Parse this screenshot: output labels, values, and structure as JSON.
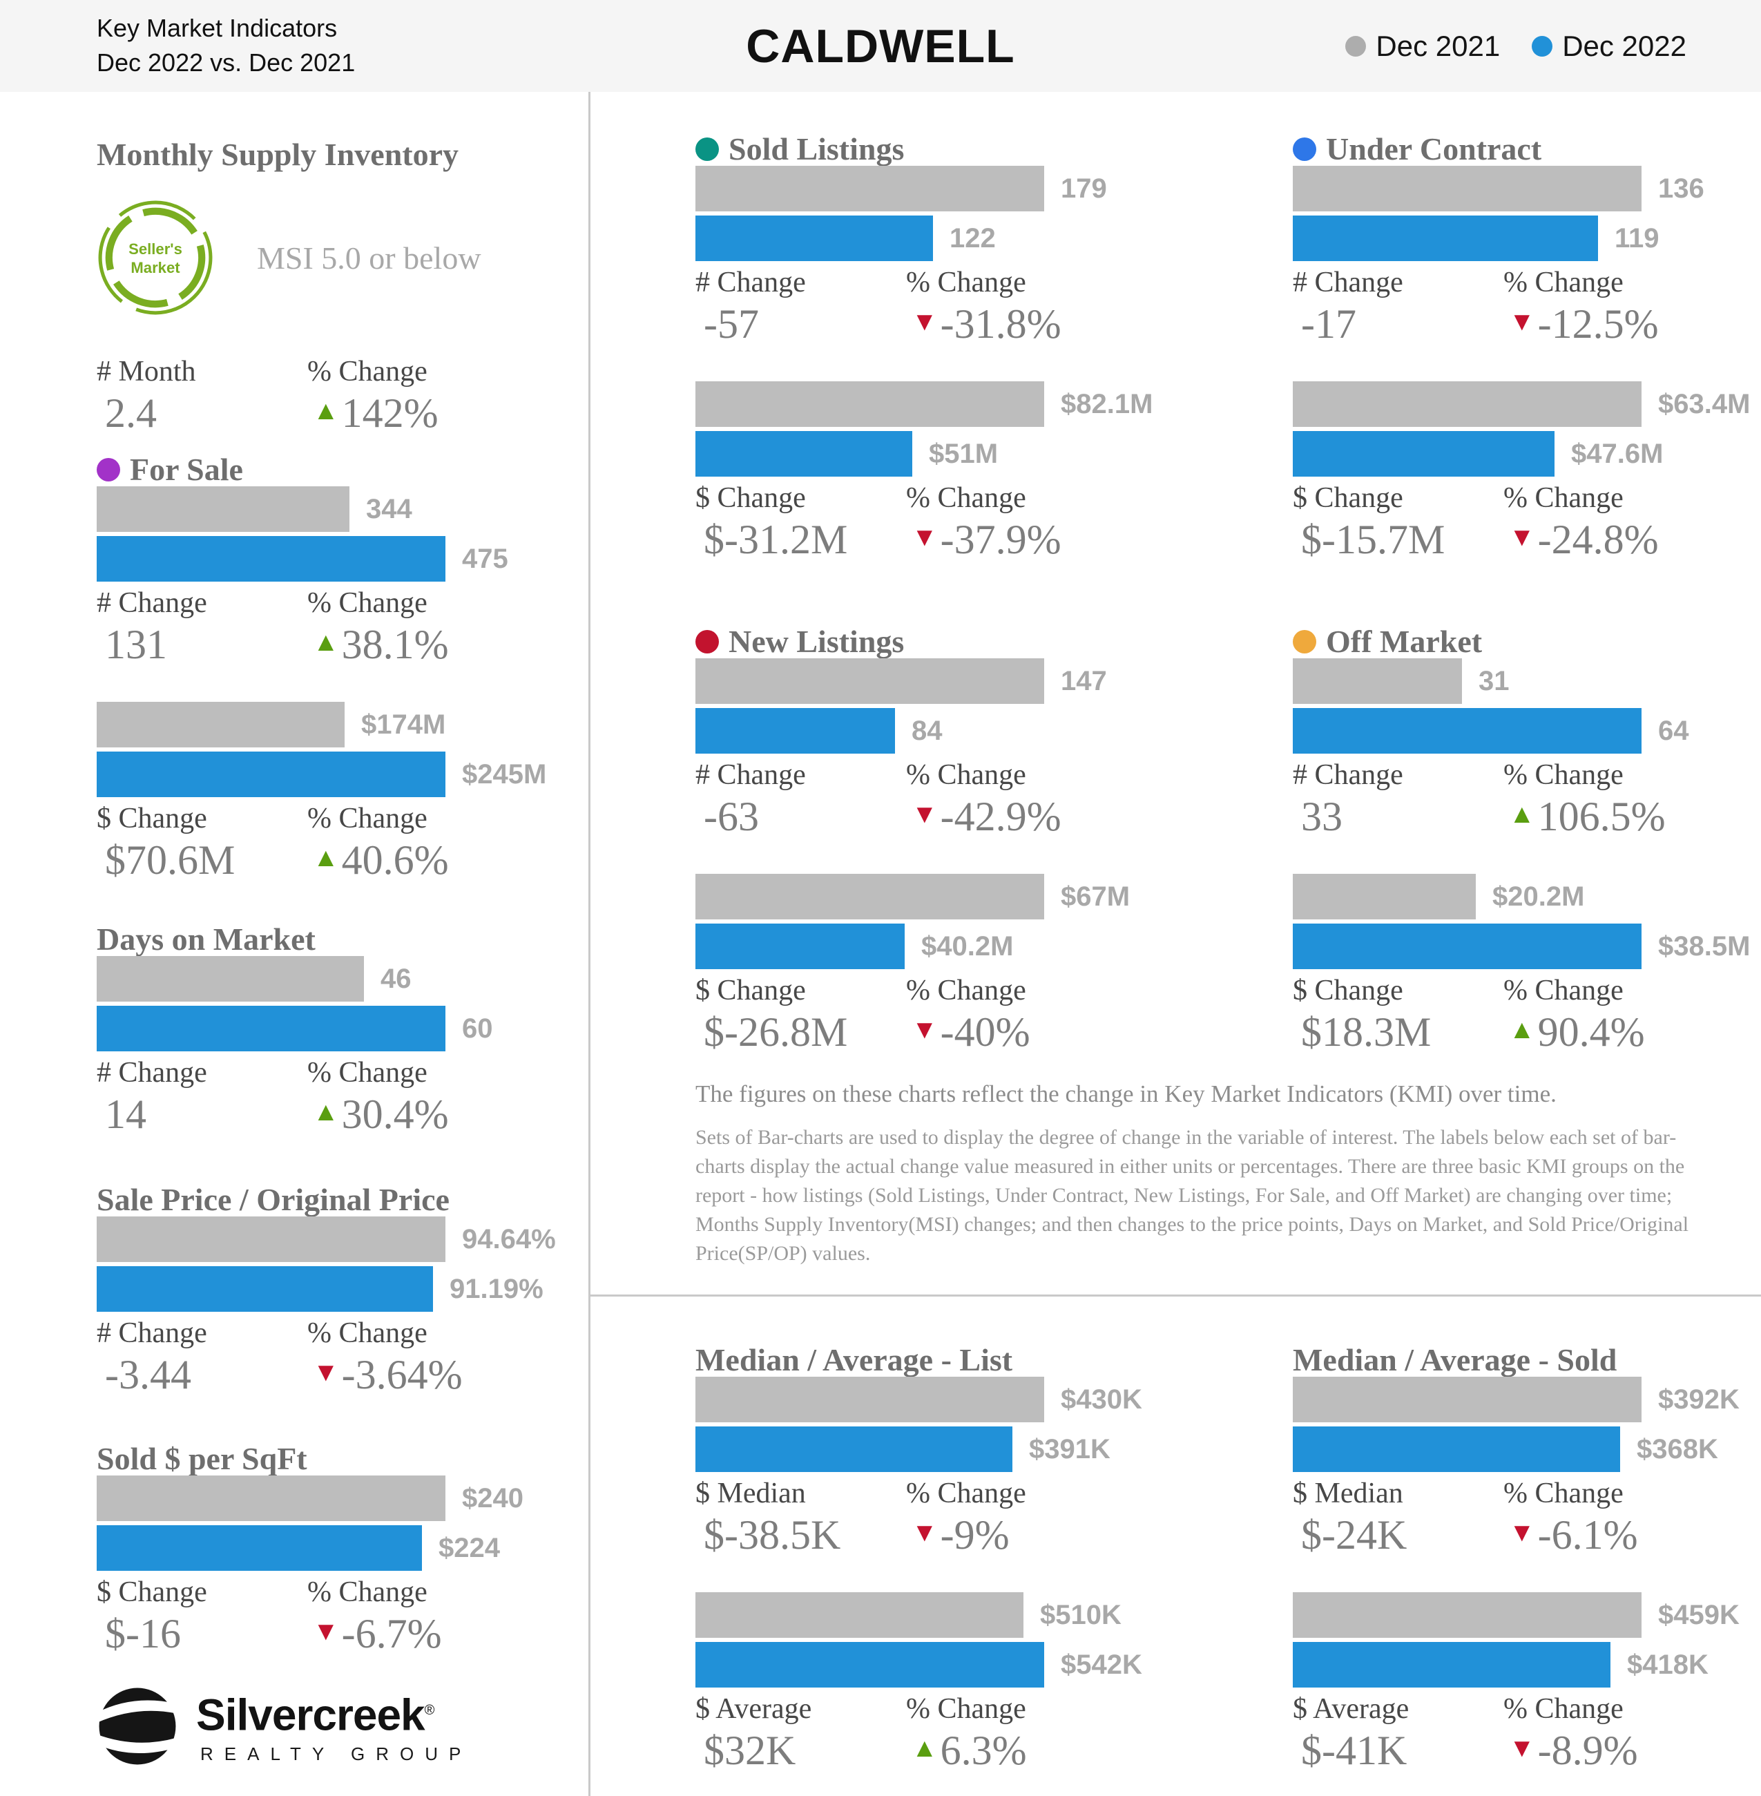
{
  "header": {
    "report_title_line1": "Key Market Indicators",
    "report_title_line2": "Dec 2022 vs. Dec 2021",
    "market_name": "CALDWELL",
    "legend": [
      {
        "label": "Dec 2021",
        "color": "#ADADAD"
      },
      {
        "label": "Dec 2022",
        "color": "#2191D8"
      }
    ]
  },
  "colors": {
    "header_bg": "#F5F5F5",
    "divider": "#C9C9C9",
    "bar_prev": "#BDBDBD",
    "bar_curr": "#2191D8",
    "triangle_up": "#5A9E10",
    "triangle_down": "#C4122F",
    "dot_for_sale": "#A232C8",
    "dot_sold_listings": "#0A9384",
    "dot_under_contract": "#2E77E8",
    "dot_new_listings": "#C2132E",
    "dot_off_market": "#EFA93C",
    "badge_green": "#7AAD21"
  },
  "msi": {
    "title": "Monthly Supply Inventory",
    "badge_line1": "Seller's",
    "badge_line2": "Market",
    "badge_note": "MSI 5.0 or below",
    "stats": [
      {
        "label": "# Month",
        "value": "2.4",
        "dir": "none"
      },
      {
        "label": "% Change",
        "value": "142%",
        "dir": "up"
      }
    ]
  },
  "indicators": {
    "for_sale": {
      "title": "For Sale",
      "chart1": {
        "prev": 344,
        "curr": 475,
        "prev_label": "344",
        "curr_label": "475",
        "stats": [
          {
            "label": "# Change",
            "value": "131",
            "dir": "none"
          },
          {
            "label": "% Change",
            "value": "38.1%",
            "dir": "up"
          }
        ]
      },
      "chart2": {
        "prev": 174,
        "curr": 245,
        "prev_label": "$174M",
        "curr_label": "$245M",
        "stats": [
          {
            "label": "$ Change",
            "value": "$70.6M",
            "dir": "none"
          },
          {
            "label": "% Change",
            "value": "40.6%",
            "dir": "up"
          }
        ]
      }
    },
    "days_on_market": {
      "title": "Days on Market",
      "chart1": {
        "prev": 46,
        "curr": 60,
        "prev_label": "46",
        "curr_label": "60",
        "stats": [
          {
            "label": "# Change",
            "value": "14",
            "dir": "none"
          },
          {
            "label": "% Change",
            "value": "30.4%",
            "dir": "up"
          }
        ]
      }
    },
    "sale_price_original": {
      "title": "Sale Price / Original Price",
      "chart1": {
        "prev": 94.64,
        "curr": 91.19,
        "prev_label": "94.64%",
        "curr_label": "91.19%",
        "stats": [
          {
            "label": "# Change",
            "value": "-3.44",
            "dir": "none"
          },
          {
            "label": "% Change",
            "value": "-3.64%",
            "dir": "down"
          }
        ]
      }
    },
    "sold_per_sqft": {
      "title": "Sold $ per SqFt",
      "chart1": {
        "prev": 240,
        "curr": 224,
        "prev_label": "$240",
        "curr_label": "$224",
        "stats": [
          {
            "label": "$ Change",
            "value": "$-16",
            "dir": "none"
          },
          {
            "label": "% Change",
            "value": "-6.7%",
            "dir": "down"
          }
        ]
      }
    },
    "sold_listings": {
      "title": "Sold Listings",
      "chart1": {
        "prev": 179,
        "curr": 122,
        "prev_label": "179",
        "curr_label": "122",
        "stats": [
          {
            "label": "# Change",
            "value": "-57",
            "dir": "none"
          },
          {
            "label": "% Change",
            "value": "-31.8%",
            "dir": "down"
          }
        ]
      },
      "chart2": {
        "prev": 82.1,
        "curr": 51,
        "prev_label": "$82.1M",
        "curr_label": "$51M",
        "stats": [
          {
            "label": "$ Change",
            "value": "$-31.2M",
            "dir": "none"
          },
          {
            "label": "% Change",
            "value": "-37.9%",
            "dir": "down"
          }
        ]
      }
    },
    "under_contract": {
      "title": "Under Contract",
      "chart1": {
        "prev": 136,
        "curr": 119,
        "prev_label": "136",
        "curr_label": "119",
        "stats": [
          {
            "label": "# Change",
            "value": "-17",
            "dir": "none"
          },
          {
            "label": "% Change",
            "value": "-12.5%",
            "dir": "down"
          }
        ]
      },
      "chart2": {
        "prev": 63.4,
        "curr": 47.6,
        "prev_label": "$63.4M",
        "curr_label": "$47.6M",
        "stats": [
          {
            "label": "$ Change",
            "value": "$-15.7M",
            "dir": "none"
          },
          {
            "label": "% Change",
            "value": "-24.8%",
            "dir": "down"
          }
        ]
      }
    },
    "new_listings": {
      "title": "New Listings",
      "chart1": {
        "prev": 147,
        "curr": 84,
        "prev_label": "147",
        "curr_label": "84",
        "stats": [
          {
            "label": "# Change",
            "value": "-63",
            "dir": "none"
          },
          {
            "label": "% Change",
            "value": "-42.9%",
            "dir": "down"
          }
        ]
      },
      "chart2": {
        "prev": 67,
        "curr": 40.2,
        "prev_label": "$67M",
        "curr_label": "$40.2M",
        "stats": [
          {
            "label": "$ Change",
            "value": "$-26.8M",
            "dir": "none"
          },
          {
            "label": "% Change",
            "value": "-40%",
            "dir": "down"
          }
        ]
      }
    },
    "off_market": {
      "title": "Off Market",
      "chart1": {
        "prev": 31,
        "curr": 64,
        "prev_label": "31",
        "curr_label": "64",
        "stats": [
          {
            "label": "# Change",
            "value": "33",
            "dir": "none"
          },
          {
            "label": "% Change",
            "value": "106.5%",
            "dir": "up"
          }
        ]
      },
      "chart2": {
        "prev": 20.2,
        "curr": 38.5,
        "prev_label": "$20.2M",
        "curr_label": "$38.5M",
        "stats": [
          {
            "label": "$ Change",
            "value": "$18.3M",
            "dir": "none"
          },
          {
            "label": "% Change",
            "value": "90.4%",
            "dir": "up"
          }
        ]
      }
    },
    "median_list": {
      "title": "Median / Average - List",
      "chart1": {
        "prev": 430,
        "curr": 391,
        "prev_label": "$430K",
        "curr_label": "$391K",
        "stats": [
          {
            "label": "$ Median",
            "value": "$-38.5K",
            "dir": "none"
          },
          {
            "label": "% Change",
            "value": "-9%",
            "dir": "down"
          }
        ]
      },
      "chart2": {
        "prev": 510,
        "curr": 542,
        "prev_label": "$510K",
        "curr_label": "$542K",
        "stats": [
          {
            "label": "$ Average",
            "value": "$32K",
            "dir": "none"
          },
          {
            "label": "% Change",
            "value": "6.3%",
            "dir": "up"
          }
        ]
      }
    },
    "median_sold": {
      "title": "Median / Average - Sold",
      "chart1": {
        "prev": 392,
        "curr": 368,
        "prev_label": "$392K",
        "curr_label": "$368K",
        "stats": [
          {
            "label": "$ Median",
            "value": "$-24K",
            "dir": "none"
          },
          {
            "label": "% Change",
            "value": "-6.1%",
            "dir": "down"
          }
        ]
      },
      "chart2": {
        "prev": 459,
        "curr": 418,
        "prev_label": "$459K",
        "curr_label": "$418K",
        "stats": [
          {
            "label": "$ Average",
            "value": "$-41K",
            "dir": "none"
          },
          {
            "label": "% Change",
            "value": "-8.9%",
            "dir": "down"
          }
        ]
      }
    }
  },
  "description": {
    "title": "The figures on these charts reflect the change in Key Market Indicators (KMI) over time.",
    "body": "Sets of Bar-charts are used to display the degree of change in the variable of interest. The labels below each set of bar-charts display the actual change value measured in either units or percentages. There are three basic KMI groups on the report - how listings (Sold Listings, Under Contract, New Listings, For Sale, and Off Market) are changing over time; Months Supply Inventory(MSI) changes; and then changes to the price points, Days on Market, and Sold Price/Original Price(SP/OP) values."
  },
  "logo": {
    "brand": "Silvercreek",
    "registered": "®",
    "subtitle": "REALTY GROUP"
  },
  "chart_data": [
    {
      "type": "table",
      "title": "Monthly Supply Inventory",
      "rows": [
        [
          "# Month",
          "2.4"
        ],
        [
          "% Change",
          "+142%"
        ]
      ],
      "market_badge": "Seller's Market (MSI 5.0 or below)"
    },
    {
      "type": "bar",
      "title": "For Sale - Units",
      "categories": [
        "Dec 2021",
        "Dec 2022"
      ],
      "values": [
        344,
        475
      ],
      "change": 131,
      "pct_change": 38.1
    },
    {
      "type": "bar",
      "title": "For Sale - Dollar Volume ($M)",
      "categories": [
        "Dec 2021",
        "Dec 2022"
      ],
      "values": [
        174,
        245
      ],
      "change": 70.6,
      "pct_change": 40.6
    },
    {
      "type": "bar",
      "title": "Days on Market",
      "categories": [
        "Dec 2021",
        "Dec 2022"
      ],
      "values": [
        46,
        60
      ],
      "change": 14,
      "pct_change": 30.4
    },
    {
      "type": "bar",
      "title": "Sale Price / Original Price (%)",
      "categories": [
        "Dec 2021",
        "Dec 2022"
      ],
      "values": [
        94.64,
        91.19
      ],
      "change": -3.44,
      "pct_change": -3.64
    },
    {
      "type": "bar",
      "title": "Sold $ per SqFt",
      "categories": [
        "Dec 2021",
        "Dec 2022"
      ],
      "values": [
        240,
        224
      ],
      "change": -16,
      "pct_change": -6.7
    },
    {
      "type": "bar",
      "title": "Sold Listings - Units",
      "categories": [
        "Dec 2021",
        "Dec 2022"
      ],
      "values": [
        179,
        122
      ],
      "change": -57,
      "pct_change": -31.8
    },
    {
      "type": "bar",
      "title": "Sold Listings - Dollar Volume ($M)",
      "categories": [
        "Dec 2021",
        "Dec 2022"
      ],
      "values": [
        82.1,
        51
      ],
      "change": -31.2,
      "pct_change": -37.9
    },
    {
      "type": "bar",
      "title": "Under Contract - Units",
      "categories": [
        "Dec 2021",
        "Dec 2022"
      ],
      "values": [
        136,
        119
      ],
      "change": -17,
      "pct_change": -12.5
    },
    {
      "type": "bar",
      "title": "Under Contract - Dollar Volume ($M)",
      "categories": [
        "Dec 2021",
        "Dec 2022"
      ],
      "values": [
        63.4,
        47.6
      ],
      "change": -15.7,
      "pct_change": -24.8
    },
    {
      "type": "bar",
      "title": "New Listings - Units",
      "categories": [
        "Dec 2021",
        "Dec 2022"
      ],
      "values": [
        147,
        84
      ],
      "change": -63,
      "pct_change": -42.9
    },
    {
      "type": "bar",
      "title": "New Listings - Dollar Volume ($M)",
      "categories": [
        "Dec 2021",
        "Dec 2022"
      ],
      "values": [
        67,
        40.2
      ],
      "change": -26.8,
      "pct_change": -40
    },
    {
      "type": "bar",
      "title": "Off Market - Units",
      "categories": [
        "Dec 2021",
        "Dec 2022"
      ],
      "values": [
        31,
        64
      ],
      "change": 33,
      "pct_change": 106.5
    },
    {
      "type": "bar",
      "title": "Off Market - Dollar Volume ($M)",
      "categories": [
        "Dec 2021",
        "Dec 2022"
      ],
      "values": [
        20.2,
        38.5
      ],
      "change": 18.3,
      "pct_change": 90.4
    },
    {
      "type": "bar",
      "title": "Median List Price ($K)",
      "categories": [
        "Dec 2021",
        "Dec 2022"
      ],
      "values": [
        430,
        391
      ],
      "change": -38.5,
      "pct_change": -9
    },
    {
      "type": "bar",
      "title": "Average List Price ($K)",
      "categories": [
        "Dec 2021",
        "Dec 2022"
      ],
      "values": [
        510,
        542
      ],
      "change": 32,
      "pct_change": 6.3
    },
    {
      "type": "bar",
      "title": "Median Sold Price ($K)",
      "categories": [
        "Dec 2021",
        "Dec 2022"
      ],
      "values": [
        392,
        368
      ],
      "change": -24,
      "pct_change": -6.1
    },
    {
      "type": "bar",
      "title": "Average Sold Price ($K)",
      "categories": [
        "Dec 2021",
        "Dec 2022"
      ],
      "values": [
        459,
        418
      ],
      "change": -41,
      "pct_change": -8.9
    }
  ]
}
